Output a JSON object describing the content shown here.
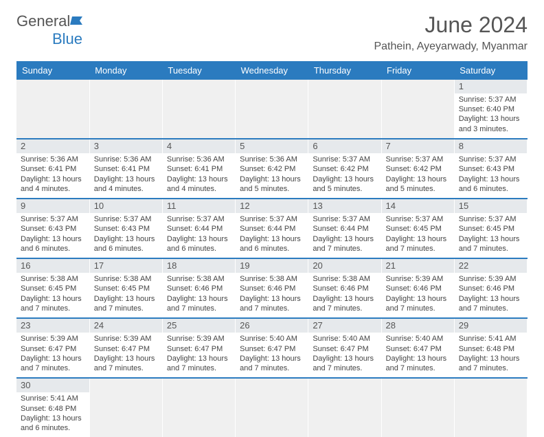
{
  "brand": {
    "name1": "General",
    "name2": "Blue"
  },
  "title": "June 2024",
  "location": "Pathein, Ayeyarwady, Myanmar",
  "colors": {
    "header_bg": "#2b7bbf",
    "header_text": "#ffffff",
    "daynum_bg": "#e6e9ec",
    "empty_bg": "#f0f0f0",
    "text": "#444444",
    "title_text": "#555555",
    "page_bg": "#ffffff"
  },
  "typography": {
    "body_fontsize": 11,
    "daynum_fontsize": 13,
    "header_fontsize": 13,
    "title_fontsize": 32,
    "location_fontsize": 16
  },
  "day_headers": [
    "Sunday",
    "Monday",
    "Tuesday",
    "Wednesday",
    "Thursday",
    "Friday",
    "Saturday"
  ],
  "weeks": [
    [
      null,
      null,
      null,
      null,
      null,
      null,
      {
        "n": "1",
        "sr": "Sunrise: 5:37 AM",
        "ss": "Sunset: 6:40 PM",
        "dl": "Daylight: 13 hours and 3 minutes."
      }
    ],
    [
      {
        "n": "2",
        "sr": "Sunrise: 5:36 AM",
        "ss": "Sunset: 6:41 PM",
        "dl": "Daylight: 13 hours and 4 minutes."
      },
      {
        "n": "3",
        "sr": "Sunrise: 5:36 AM",
        "ss": "Sunset: 6:41 PM",
        "dl": "Daylight: 13 hours and 4 minutes."
      },
      {
        "n": "4",
        "sr": "Sunrise: 5:36 AM",
        "ss": "Sunset: 6:41 PM",
        "dl": "Daylight: 13 hours and 4 minutes."
      },
      {
        "n": "5",
        "sr": "Sunrise: 5:36 AM",
        "ss": "Sunset: 6:42 PM",
        "dl": "Daylight: 13 hours and 5 minutes."
      },
      {
        "n": "6",
        "sr": "Sunrise: 5:37 AM",
        "ss": "Sunset: 6:42 PM",
        "dl": "Daylight: 13 hours and 5 minutes."
      },
      {
        "n": "7",
        "sr": "Sunrise: 5:37 AM",
        "ss": "Sunset: 6:42 PM",
        "dl": "Daylight: 13 hours and 5 minutes."
      },
      {
        "n": "8",
        "sr": "Sunrise: 5:37 AM",
        "ss": "Sunset: 6:43 PM",
        "dl": "Daylight: 13 hours and 6 minutes."
      }
    ],
    [
      {
        "n": "9",
        "sr": "Sunrise: 5:37 AM",
        "ss": "Sunset: 6:43 PM",
        "dl": "Daylight: 13 hours and 6 minutes."
      },
      {
        "n": "10",
        "sr": "Sunrise: 5:37 AM",
        "ss": "Sunset: 6:43 PM",
        "dl": "Daylight: 13 hours and 6 minutes."
      },
      {
        "n": "11",
        "sr": "Sunrise: 5:37 AM",
        "ss": "Sunset: 6:44 PM",
        "dl": "Daylight: 13 hours and 6 minutes."
      },
      {
        "n": "12",
        "sr": "Sunrise: 5:37 AM",
        "ss": "Sunset: 6:44 PM",
        "dl": "Daylight: 13 hours and 6 minutes."
      },
      {
        "n": "13",
        "sr": "Sunrise: 5:37 AM",
        "ss": "Sunset: 6:44 PM",
        "dl": "Daylight: 13 hours and 7 minutes."
      },
      {
        "n": "14",
        "sr": "Sunrise: 5:37 AM",
        "ss": "Sunset: 6:45 PM",
        "dl": "Daylight: 13 hours and 7 minutes."
      },
      {
        "n": "15",
        "sr": "Sunrise: 5:37 AM",
        "ss": "Sunset: 6:45 PM",
        "dl": "Daylight: 13 hours and 7 minutes."
      }
    ],
    [
      {
        "n": "16",
        "sr": "Sunrise: 5:38 AM",
        "ss": "Sunset: 6:45 PM",
        "dl": "Daylight: 13 hours and 7 minutes."
      },
      {
        "n": "17",
        "sr": "Sunrise: 5:38 AM",
        "ss": "Sunset: 6:45 PM",
        "dl": "Daylight: 13 hours and 7 minutes."
      },
      {
        "n": "18",
        "sr": "Sunrise: 5:38 AM",
        "ss": "Sunset: 6:46 PM",
        "dl": "Daylight: 13 hours and 7 minutes."
      },
      {
        "n": "19",
        "sr": "Sunrise: 5:38 AM",
        "ss": "Sunset: 6:46 PM",
        "dl": "Daylight: 13 hours and 7 minutes."
      },
      {
        "n": "20",
        "sr": "Sunrise: 5:38 AM",
        "ss": "Sunset: 6:46 PM",
        "dl": "Daylight: 13 hours and 7 minutes."
      },
      {
        "n": "21",
        "sr": "Sunrise: 5:39 AM",
        "ss": "Sunset: 6:46 PM",
        "dl": "Daylight: 13 hours and 7 minutes."
      },
      {
        "n": "22",
        "sr": "Sunrise: 5:39 AM",
        "ss": "Sunset: 6:46 PM",
        "dl": "Daylight: 13 hours and 7 minutes."
      }
    ],
    [
      {
        "n": "23",
        "sr": "Sunrise: 5:39 AM",
        "ss": "Sunset: 6:47 PM",
        "dl": "Daylight: 13 hours and 7 minutes."
      },
      {
        "n": "24",
        "sr": "Sunrise: 5:39 AM",
        "ss": "Sunset: 6:47 PM",
        "dl": "Daylight: 13 hours and 7 minutes."
      },
      {
        "n": "25",
        "sr": "Sunrise: 5:39 AM",
        "ss": "Sunset: 6:47 PM",
        "dl": "Daylight: 13 hours and 7 minutes."
      },
      {
        "n": "26",
        "sr": "Sunrise: 5:40 AM",
        "ss": "Sunset: 6:47 PM",
        "dl": "Daylight: 13 hours and 7 minutes."
      },
      {
        "n": "27",
        "sr": "Sunrise: 5:40 AM",
        "ss": "Sunset: 6:47 PM",
        "dl": "Daylight: 13 hours and 7 minutes."
      },
      {
        "n": "28",
        "sr": "Sunrise: 5:40 AM",
        "ss": "Sunset: 6:47 PM",
        "dl": "Daylight: 13 hours and 7 minutes."
      },
      {
        "n": "29",
        "sr": "Sunrise: 5:41 AM",
        "ss": "Sunset: 6:48 PM",
        "dl": "Daylight: 13 hours and 7 minutes."
      }
    ],
    [
      {
        "n": "30",
        "sr": "Sunrise: 5:41 AM",
        "ss": "Sunset: 6:48 PM",
        "dl": "Daylight: 13 hours and 6 minutes."
      },
      null,
      null,
      null,
      null,
      null,
      null
    ]
  ]
}
